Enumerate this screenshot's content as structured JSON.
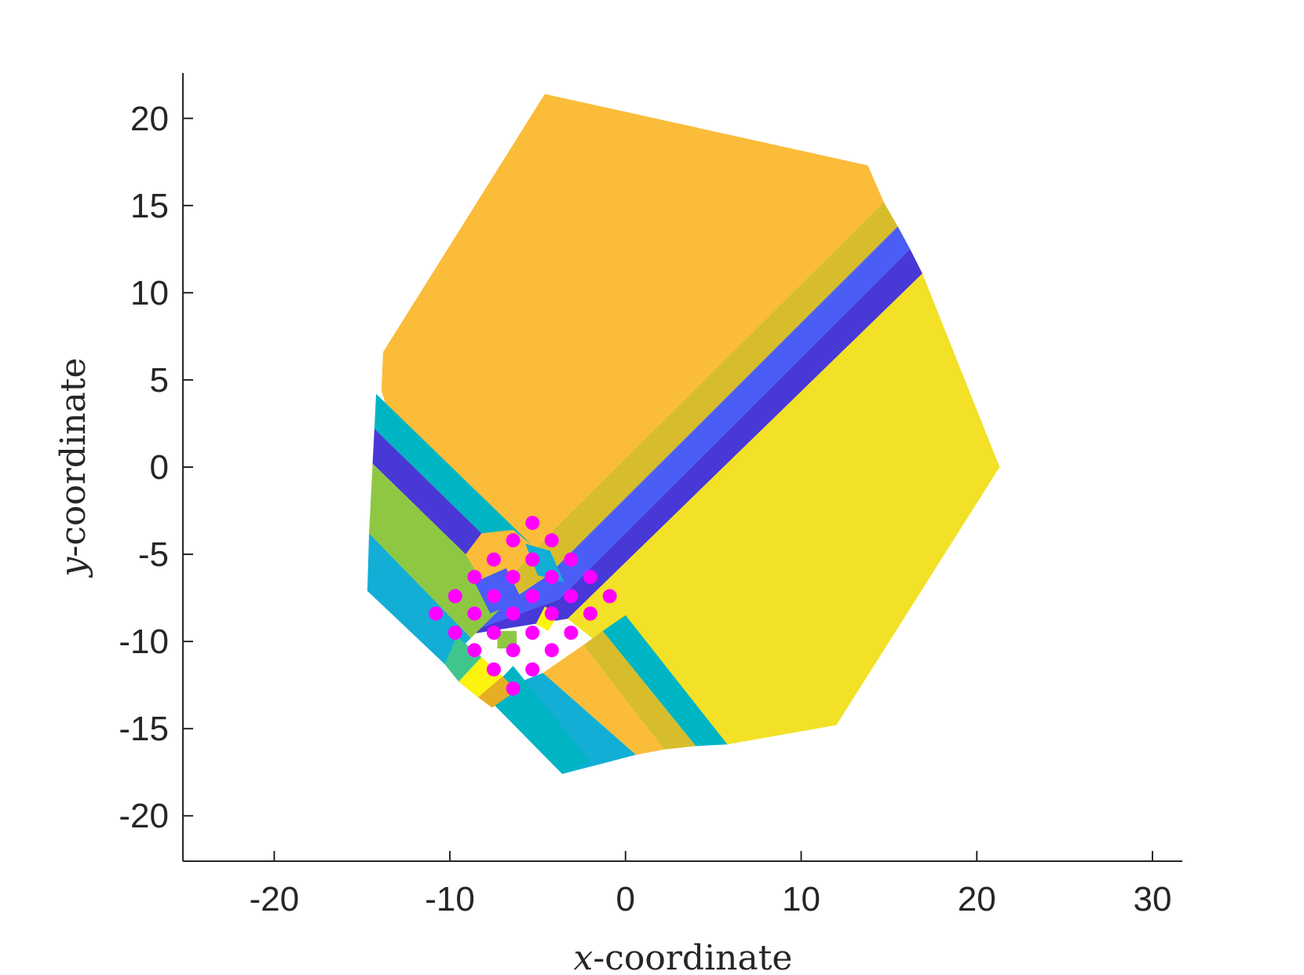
{
  "chart_data": {
    "type": "scatter",
    "title": "",
    "xlabel": {
      "var": "x",
      "rest": "-coordinate"
    },
    "ylabel": {
      "var": "y",
      "rest": "-coordinate"
    },
    "xlim": [
      -25.2,
      31.7
    ],
    "ylim": [
      -22.6,
      22.6
    ],
    "xticks": [
      -20,
      -10,
      0,
      10,
      20,
      30
    ],
    "yticks": [
      -20,
      -15,
      -10,
      -5,
      0,
      5,
      10,
      15,
      20
    ],
    "xtick_labels": [
      "-20",
      "-10",
      "0",
      "10",
      "20",
      "30"
    ],
    "ytick_labels": [
      "-20",
      "-15",
      "-10",
      "-5",
      "0",
      "5",
      "10",
      "15",
      "20"
    ],
    "grid": false,
    "box": false,
    "legend": "none",
    "region_colors": {
      "orange": "#fbbc3a",
      "olive": "#d7bd2c",
      "blue": "#4a5ef5",
      "indigo": "#4838d6",
      "yellow": "#f2e126",
      "teal": "#00b5c3",
      "cyan": "#12aed5",
      "green": "#40c68d",
      "lime": "#8ec843",
      "bright_yellow": "#fcf30f",
      "dark_orange": "#e7ad25"
    },
    "marker_color": "#ff00ff",
    "regions": [
      {
        "color": "orange",
        "polygon": [
          [
            -4.6,
            21.4
          ],
          [
            13.8,
            17.3
          ],
          [
            14.7,
            15.2
          ],
          [
            -4.0,
            -3.5
          ],
          [
            -9.6,
            -9.7
          ],
          [
            -13.9,
            4.4
          ],
          [
            -13.8,
            6.6
          ]
        ]
      },
      {
        "color": "olive",
        "polygon": [
          [
            14.7,
            15.2
          ],
          [
            15.5,
            13.8
          ],
          [
            -4.4,
            -6.2
          ],
          [
            -9.6,
            -9.7
          ],
          [
            -4.0,
            -3.5
          ]
        ]
      },
      {
        "color": "blue",
        "polygon": [
          [
            15.5,
            13.8
          ],
          [
            16.2,
            12.5
          ],
          [
            -3.8,
            -7.6
          ],
          [
            -9.6,
            -9.7
          ],
          [
            -4.4,
            -6.2
          ]
        ]
      },
      {
        "color": "indigo",
        "polygon": [
          [
            16.2,
            12.5
          ],
          [
            16.9,
            11.1
          ],
          [
            -3.3,
            -8.7
          ],
          [
            -9.6,
            -9.7
          ],
          [
            -3.8,
            -7.6
          ]
        ]
      },
      {
        "color": "yellow",
        "polygon": [
          [
            16.9,
            11.1
          ],
          [
            21.3,
            0
          ],
          [
            12.0,
            -14.8
          ],
          [
            5.8,
            -15.9
          ],
          [
            -3.3,
            -8.7
          ]
        ]
      },
      {
        "color": "teal",
        "polygon": [
          [
            -14.2,
            4.2
          ],
          [
            -14.3,
            2.2
          ],
          [
            -8.2,
            -3.8
          ],
          [
            -6.4,
            -3.6
          ],
          [
            -5.3,
            -4.5
          ]
        ]
      },
      {
        "color": "indigo",
        "polygon": [
          [
            -14.3,
            2.2
          ],
          [
            -14.4,
            0.2
          ],
          [
            -9.1,
            -5.0
          ],
          [
            -8.2,
            -3.8
          ]
        ]
      },
      {
        "color": "lime",
        "polygon": [
          [
            -14.4,
            0.2
          ],
          [
            -14.6,
            -3.8
          ],
          [
            -8.8,
            -9.8
          ],
          [
            -7.2,
            -8.2
          ],
          [
            -9.1,
            -5.0
          ]
        ]
      },
      {
        "color": "cyan",
        "polygon": [
          [
            -14.6,
            -3.8
          ],
          [
            -14.7,
            -7.1
          ],
          [
            -10.3,
            -11.3
          ],
          [
            -8.8,
            -9.8
          ]
        ]
      },
      {
        "color": "cyan",
        "polygon": [
          [
            -8.0,
            -13.1
          ],
          [
            -3.6,
            -17.6
          ],
          [
            0.6,
            -16.5
          ],
          [
            -4.7,
            -11.8
          ]
        ]
      },
      {
        "color": "teal",
        "polygon": [
          [
            -8.0,
            -13.1
          ],
          [
            -6.4,
            -11.4
          ],
          [
            -2.0,
            -16.9
          ],
          [
            -3.6,
            -17.6
          ]
        ]
      },
      {
        "color": "orange",
        "polygon": [
          [
            -4.7,
            -11.8
          ],
          [
            -2.4,
            -10.2
          ],
          [
            2.2,
            -16.2
          ],
          [
            0.6,
            -16.5
          ]
        ]
      },
      {
        "color": "olive",
        "polygon": [
          [
            -2.4,
            -10.2
          ],
          [
            -1.3,
            -9.4
          ],
          [
            4.0,
            -16.0
          ],
          [
            2.2,
            -16.2
          ]
        ]
      },
      {
        "color": "teal",
        "polygon": [
          [
            -1.3,
            -9.4
          ],
          [
            0.0,
            -8.5
          ],
          [
            5.8,
            -15.9
          ],
          [
            4.0,
            -16.0
          ]
        ]
      },
      {
        "color": "green",
        "polygon": [
          [
            -10.3,
            -11.3
          ],
          [
            -9.6,
            -9.7
          ],
          [
            -8.2,
            -10.9
          ],
          [
            -9.5,
            -12.3
          ]
        ]
      },
      {
        "color": "bright_yellow",
        "polygon": [
          [
            -9.5,
            -12.3
          ],
          [
            -8.2,
            -10.9
          ],
          [
            -7.0,
            -12.0
          ],
          [
            -8.4,
            -13.2
          ]
        ]
      },
      {
        "color": "dark_orange",
        "polygon": [
          [
            -8.4,
            -13.2
          ],
          [
            -7.0,
            -12.0
          ],
          [
            -6.2,
            -12.8
          ],
          [
            -7.6,
            -13.8
          ]
        ]
      },
      {
        "color": "blue",
        "polygon": [
          [
            -8.6,
            -6.6
          ],
          [
            -6.8,
            -5.8
          ],
          [
            -5.9,
            -7.6
          ],
          [
            -7.7,
            -8.4
          ]
        ]
      },
      {
        "color": "cyan",
        "polygon": [
          [
            -5.7,
            -4.4
          ],
          [
            -4.3,
            -4.8
          ],
          [
            -3.5,
            -6.6
          ],
          [
            -5.0,
            -6.2
          ]
        ]
      },
      {
        "color": "bright_yellow",
        "polygon": [
          [
            -4.6,
            -8.0
          ],
          [
            -3.8,
            -8.4
          ],
          [
            -4.4,
            -9.4
          ],
          [
            -5.1,
            -9.0
          ]
        ]
      },
      {
        "color": "lime",
        "polygon": [
          [
            -7.3,
            -9.4
          ],
          [
            -6.2,
            -9.4
          ],
          [
            -6.2,
            -10.4
          ],
          [
            -7.3,
            -10.4
          ]
        ]
      }
    ],
    "points": [
      [
        -5.3,
        -3.2
      ],
      [
        -6.4,
        -4.2
      ],
      [
        -4.2,
        -4.2
      ],
      [
        -7.5,
        -5.3
      ],
      [
        -5.3,
        -5.3
      ],
      [
        -3.1,
        -5.3
      ],
      [
        -8.6,
        -6.3
      ],
      [
        -6.4,
        -6.3
      ],
      [
        -4.2,
        -6.3
      ],
      [
        -2.0,
        -6.3
      ],
      [
        -9.7,
        -7.4
      ],
      [
        -7.5,
        -7.4
      ],
      [
        -5.3,
        -7.4
      ],
      [
        -3.1,
        -7.4
      ],
      [
        -0.9,
        -7.4
      ],
      [
        -10.8,
        -8.4
      ],
      [
        -8.6,
        -8.4
      ],
      [
        -6.4,
        -8.4
      ],
      [
        -4.2,
        -8.4
      ],
      [
        -2.0,
        -8.4
      ],
      [
        -9.7,
        -9.5
      ],
      [
        -7.5,
        -9.5
      ],
      [
        -5.3,
        -9.5
      ],
      [
        -3.1,
        -9.5
      ],
      [
        -8.6,
        -10.5
      ],
      [
        -6.4,
        -10.5
      ],
      [
        -4.2,
        -10.5
      ],
      [
        -7.5,
        -11.6
      ],
      [
        -5.3,
        -11.6
      ],
      [
        -6.4,
        -12.7
      ]
    ]
  }
}
